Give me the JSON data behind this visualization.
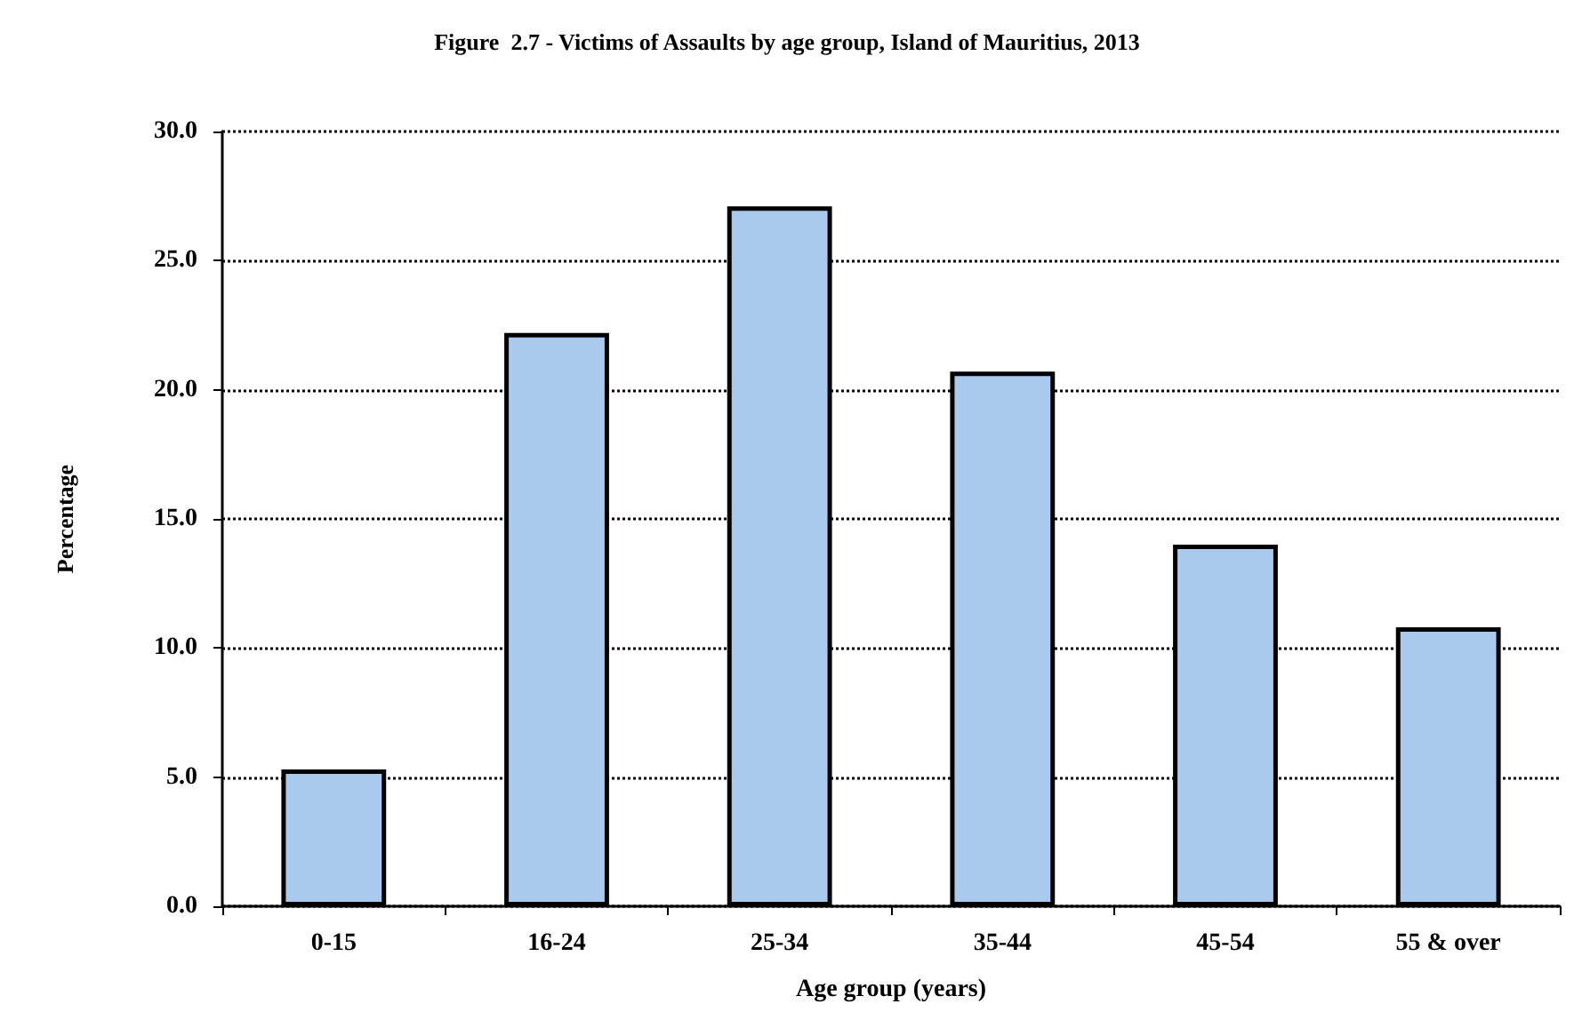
{
  "chart_data": {
    "type": "bar",
    "title": "Figure  2.7 - Victims of Assaults by age group, Island of Mauritius, 2013",
    "xlabel": "Age group (years)",
    "ylabel": "Percentage",
    "categories": [
      "0-15",
      "16-24",
      "25-34",
      "35-44",
      "45-54",
      "55 & over"
    ],
    "values": [
      5.3,
      22.2,
      27.1,
      20.7,
      14.0,
      10.8
    ],
    "color": "#a9c9ef",
    "ylim": [
      0,
      30
    ],
    "yticks": [
      {
        "value": 0,
        "label": "0.0"
      },
      {
        "value": 5,
        "label": "5.0"
      },
      {
        "value": 10,
        "label": "10.0"
      },
      {
        "value": 15,
        "label": "15.0"
      },
      {
        "value": 20,
        "label": "20.0"
      },
      {
        "value": 25,
        "label": "25.0"
      },
      {
        "value": 30,
        "label": "30.0"
      }
    ],
    "grid": "y"
  }
}
